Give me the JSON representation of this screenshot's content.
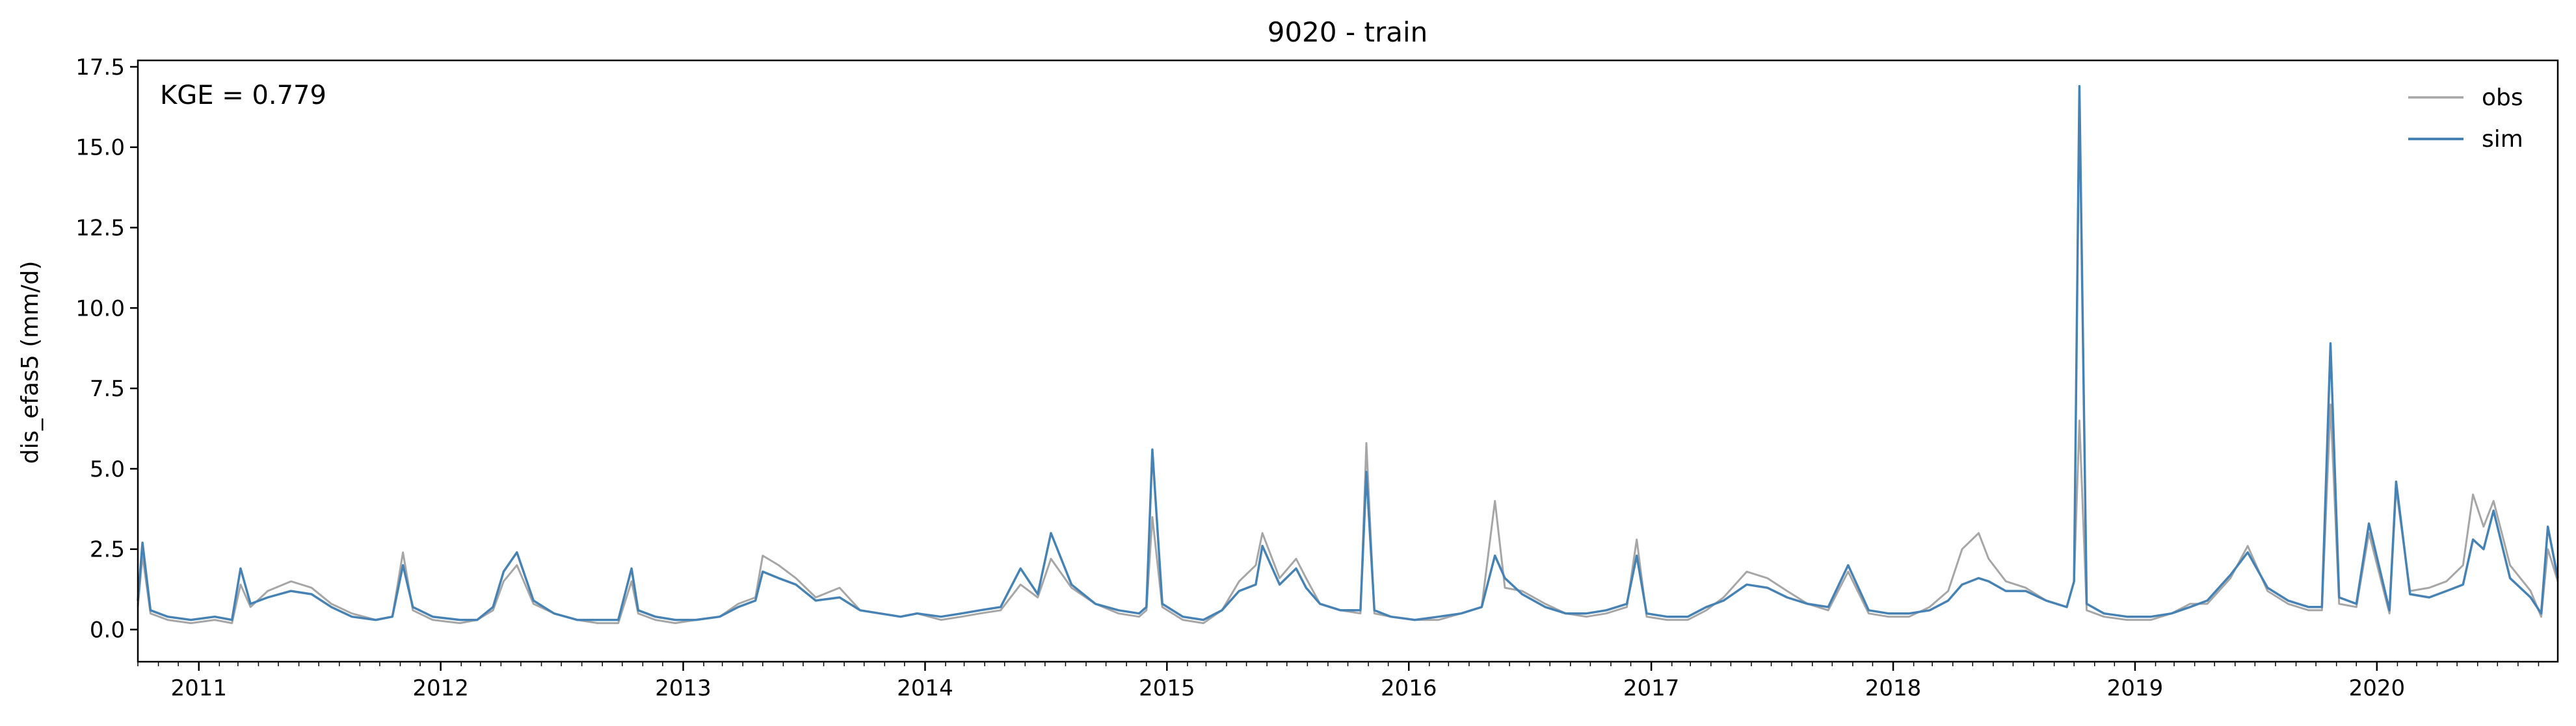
{
  "chart_data": {
    "type": "line",
    "title": "9020 - train",
    "xlabel": "",
    "ylabel": "dis_efas5 (mm/d)",
    "annotation": "KGE = 0.779",
    "xlim": [
      "2010-10-01",
      "2020-09-30"
    ],
    "ylim": [
      -1.0,
      17.7
    ],
    "x_ticks": [
      "2011",
      "2012",
      "2013",
      "2014",
      "2015",
      "2016",
      "2017",
      "2018",
      "2019",
      "2020"
    ],
    "y_ticks": [
      "0.0",
      "2.5",
      "5.0",
      "7.5",
      "10.0",
      "12.5",
      "15.0",
      "17.5"
    ],
    "legend_position": "top-right",
    "grid": false,
    "colors": {
      "obs": "#a6a6a6",
      "sim": "#4682b4"
    },
    "series": [
      {
        "name": "obs",
        "color": "#a6a6a6",
        "x": [
          "2010-10-01",
          "2010-10-08",
          "2010-10-20",
          "2010-11-15",
          "2010-12-20",
          "2011-01-25",
          "2011-02-20",
          "2011-03-05",
          "2011-03-20",
          "2011-04-15",
          "2011-05-20",
          "2011-06-20",
          "2011-07-20",
          "2011-08-20",
          "2011-09-25",
          "2011-10-20",
          "2011-11-05",
          "2011-11-20",
          "2011-12-20",
          "2012-01-30",
          "2012-02-25",
          "2012-03-20",
          "2012-04-05",
          "2012-04-25",
          "2012-05-20",
          "2012-06-20",
          "2012-07-25",
          "2012-08-25",
          "2012-09-25",
          "2012-10-15",
          "2012-10-25",
          "2012-11-20",
          "2012-12-20",
          "2013-01-20",
          "2013-02-25",
          "2013-03-25",
          "2013-04-20",
          "2013-05-01",
          "2013-05-25",
          "2013-06-20",
          "2013-07-20",
          "2013-08-25",
          "2013-09-25",
          "2013-10-25",
          "2013-11-25",
          "2013-12-20",
          "2014-01-25",
          "2014-02-25",
          "2014-03-25",
          "2014-04-25",
          "2014-05-25",
          "2014-06-20",
          "2014-07-10",
          "2014-08-10",
          "2014-09-15",
          "2014-10-20",
          "2014-11-20",
          "2014-12-01",
          "2014-12-10",
          "2014-12-25",
          "2015-01-25",
          "2015-02-25",
          "2015-03-25",
          "2015-04-20",
          "2015-05-15",
          "2015-05-25",
          "2015-06-20",
          "2015-07-15",
          "2015-07-30",
          "2015-08-20",
          "2015-09-20",
          "2015-10-20",
          "2015-10-29",
          "2015-11-10",
          "2015-12-05",
          "2016-01-10",
          "2016-02-15",
          "2016-03-20",
          "2016-04-20",
          "2016-05-10",
          "2016-05-25",
          "2016-06-20",
          "2016-07-25",
          "2016-08-25",
          "2016-09-25",
          "2016-10-25",
          "2016-11-25",
          "2016-12-10",
          "2016-12-25",
          "2017-01-25",
          "2017-02-25",
          "2017-03-25",
          "2017-04-20",
          "2017-05-25",
          "2017-06-25",
          "2017-07-25",
          "2017-08-25",
          "2017-09-25",
          "2017-10-25",
          "2017-11-25",
          "2017-12-25",
          "2018-01-25",
          "2018-02-25",
          "2018-03-25",
          "2018-04-15",
          "2018-05-10",
          "2018-05-25",
          "2018-06-20",
          "2018-07-20",
          "2018-08-20",
          "2018-09-20",
          "2018-10-01",
          "2018-10-09",
          "2018-10-20",
          "2018-11-15",
          "2018-12-20",
          "2019-01-25",
          "2019-02-25",
          "2019-03-25",
          "2019-04-20",
          "2019-05-25",
          "2019-06-20",
          "2019-07-20",
          "2019-08-20",
          "2019-09-20",
          "2019-10-10",
          "2019-10-23",
          "2019-11-05",
          "2019-12-01",
          "2019-12-20",
          "2020-01-20",
          "2020-01-30",
          "2020-02-20",
          "2020-03-20",
          "2020-04-15",
          "2020-05-10",
          "2020-05-25",
          "2020-06-10",
          "2020-06-25",
          "2020-07-20",
          "2020-08-20",
          "2020-09-05",
          "2020-09-15",
          "2020-09-30"
        ],
        "y": [
          0.7,
          2.3,
          0.5,
          0.3,
          0.2,
          0.3,
          0.2,
          1.4,
          0.7,
          1.2,
          1.5,
          1.3,
          0.8,
          0.5,
          0.3,
          0.4,
          2.4,
          0.6,
          0.3,
          0.2,
          0.3,
          0.6,
          1.5,
          2.0,
          0.8,
          0.5,
          0.3,
          0.2,
          0.2,
          1.5,
          0.5,
          0.3,
          0.2,
          0.3,
          0.4,
          0.8,
          1.0,
          2.3,
          2.0,
          1.6,
          1.0,
          1.3,
          0.6,
          0.5,
          0.4,
          0.5,
          0.3,
          0.4,
          0.5,
          0.6,
          1.4,
          1.0,
          2.2,
          1.3,
          0.8,
          0.5,
          0.4,
          0.6,
          3.5,
          0.7,
          0.3,
          0.2,
          0.6,
          1.5,
          2.0,
          3.0,
          1.6,
          2.2,
          1.6,
          0.8,
          0.6,
          0.5,
          5.8,
          0.5,
          0.4,
          0.3,
          0.3,
          0.5,
          0.7,
          4.0,
          1.3,
          1.2,
          0.8,
          0.5,
          0.4,
          0.5,
          0.7,
          2.8,
          0.4,
          0.3,
          0.3,
          0.6,
          1.0,
          1.8,
          1.6,
          1.2,
          0.8,
          0.6,
          1.8,
          0.5,
          0.4,
          0.4,
          0.7,
          1.2,
          2.5,
          3.0,
          2.2,
          1.5,
          1.3,
          0.9,
          0.7,
          1.5,
          6.5,
          0.6,
          0.4,
          0.3,
          0.3,
          0.5,
          0.8,
          0.8,
          1.6,
          2.6,
          1.2,
          0.8,
          0.6,
          0.6,
          7.0,
          0.8,
          0.7,
          3.0,
          0.5,
          4.4,
          1.2,
          1.3,
          1.5,
          2.0,
          4.2,
          3.2,
          4.0,
          2.0,
          1.2,
          0.4,
          2.5,
          1.5
        ]
      },
      {
        "name": "sim",
        "color": "#4682b4",
        "x": [
          "2010-10-01",
          "2010-10-08",
          "2010-10-20",
          "2010-11-15",
          "2010-12-20",
          "2011-01-25",
          "2011-02-20",
          "2011-03-05",
          "2011-03-20",
          "2011-04-15",
          "2011-05-20",
          "2011-06-20",
          "2011-07-20",
          "2011-08-20",
          "2011-09-25",
          "2011-10-20",
          "2011-11-05",
          "2011-11-20",
          "2011-12-20",
          "2012-01-30",
          "2012-02-25",
          "2012-03-20",
          "2012-04-05",
          "2012-04-25",
          "2012-05-20",
          "2012-06-20",
          "2012-07-25",
          "2012-08-25",
          "2012-09-25",
          "2012-10-15",
          "2012-10-25",
          "2012-11-20",
          "2012-12-20",
          "2013-01-20",
          "2013-02-25",
          "2013-03-25",
          "2013-04-20",
          "2013-05-01",
          "2013-05-25",
          "2013-06-20",
          "2013-07-20",
          "2013-08-25",
          "2013-09-25",
          "2013-10-25",
          "2013-11-25",
          "2013-12-20",
          "2014-01-25",
          "2014-02-25",
          "2014-03-25",
          "2014-04-25",
          "2014-05-25",
          "2014-06-20",
          "2014-07-10",
          "2014-08-10",
          "2014-09-15",
          "2014-10-20",
          "2014-11-20",
          "2014-12-01",
          "2014-12-10",
          "2014-12-25",
          "2015-01-25",
          "2015-02-25",
          "2015-03-25",
          "2015-04-20",
          "2015-05-15",
          "2015-05-25",
          "2015-06-20",
          "2015-07-15",
          "2015-07-30",
          "2015-08-20",
          "2015-09-20",
          "2015-10-20",
          "2015-10-29",
          "2015-11-10",
          "2015-12-05",
          "2016-01-10",
          "2016-02-15",
          "2016-03-20",
          "2016-04-20",
          "2016-05-10",
          "2016-05-25",
          "2016-06-20",
          "2016-07-25",
          "2016-08-25",
          "2016-09-25",
          "2016-10-25",
          "2016-11-25",
          "2016-12-10",
          "2016-12-25",
          "2017-01-25",
          "2017-02-25",
          "2017-03-25",
          "2017-04-20",
          "2017-05-25",
          "2017-06-25",
          "2017-07-25",
          "2017-08-25",
          "2017-09-25",
          "2017-10-25",
          "2017-11-25",
          "2017-12-25",
          "2018-01-25",
          "2018-02-25",
          "2018-03-25",
          "2018-04-15",
          "2018-05-10",
          "2018-05-25",
          "2018-06-20",
          "2018-07-20",
          "2018-08-20",
          "2018-09-20",
          "2018-10-01",
          "2018-10-09",
          "2018-10-20",
          "2018-11-15",
          "2018-12-20",
          "2019-01-25",
          "2019-02-25",
          "2019-03-25",
          "2019-04-20",
          "2019-05-25",
          "2019-06-20",
          "2019-07-20",
          "2019-08-20",
          "2019-09-20",
          "2019-10-10",
          "2019-10-23",
          "2019-11-05",
          "2019-12-01",
          "2019-12-20",
          "2020-01-20",
          "2020-01-30",
          "2020-02-20",
          "2020-03-20",
          "2020-04-15",
          "2020-05-10",
          "2020-05-25",
          "2020-06-10",
          "2020-06-25",
          "2020-07-20",
          "2020-08-20",
          "2020-09-05",
          "2020-09-15",
          "2020-09-30"
        ],
        "y": [
          0.9,
          2.7,
          0.6,
          0.4,
          0.3,
          0.4,
          0.3,
          1.9,
          0.8,
          1.0,
          1.2,
          1.1,
          0.7,
          0.4,
          0.3,
          0.4,
          2.0,
          0.7,
          0.4,
          0.3,
          0.3,
          0.7,
          1.8,
          2.4,
          0.9,
          0.5,
          0.3,
          0.3,
          0.3,
          1.9,
          0.6,
          0.4,
          0.3,
          0.3,
          0.4,
          0.7,
          0.9,
          1.8,
          1.6,
          1.4,
          0.9,
          1.0,
          0.6,
          0.5,
          0.4,
          0.5,
          0.4,
          0.5,
          0.6,
          0.7,
          1.9,
          1.1,
          3.0,
          1.4,
          0.8,
          0.6,
          0.5,
          0.7,
          5.6,
          0.8,
          0.4,
          0.3,
          0.6,
          1.2,
          1.4,
          2.6,
          1.4,
          1.9,
          1.3,
          0.8,
          0.6,
          0.6,
          4.9,
          0.6,
          0.4,
          0.3,
          0.4,
          0.5,
          0.7,
          2.3,
          1.6,
          1.1,
          0.7,
          0.5,
          0.5,
          0.6,
          0.8,
          2.3,
          0.5,
          0.4,
          0.4,
          0.7,
          0.9,
          1.4,
          1.3,
          1.0,
          0.8,
          0.7,
          2.0,
          0.6,
          0.5,
          0.5,
          0.6,
          0.9,
          1.4,
          1.6,
          1.5,
          1.2,
          1.2,
          0.9,
          0.7,
          1.5,
          16.9,
          0.8,
          0.5,
          0.4,
          0.4,
          0.5,
          0.7,
          0.9,
          1.7,
          2.4,
          1.3,
          0.9,
          0.7,
          0.7,
          8.9,
          1.0,
          0.8,
          3.3,
          0.6,
          4.6,
          1.1,
          1.0,
          1.2,
          1.4,
          2.8,
          2.5,
          3.7,
          1.6,
          1.0,
          0.5,
          3.2,
          1.6
        ]
      }
    ]
  }
}
